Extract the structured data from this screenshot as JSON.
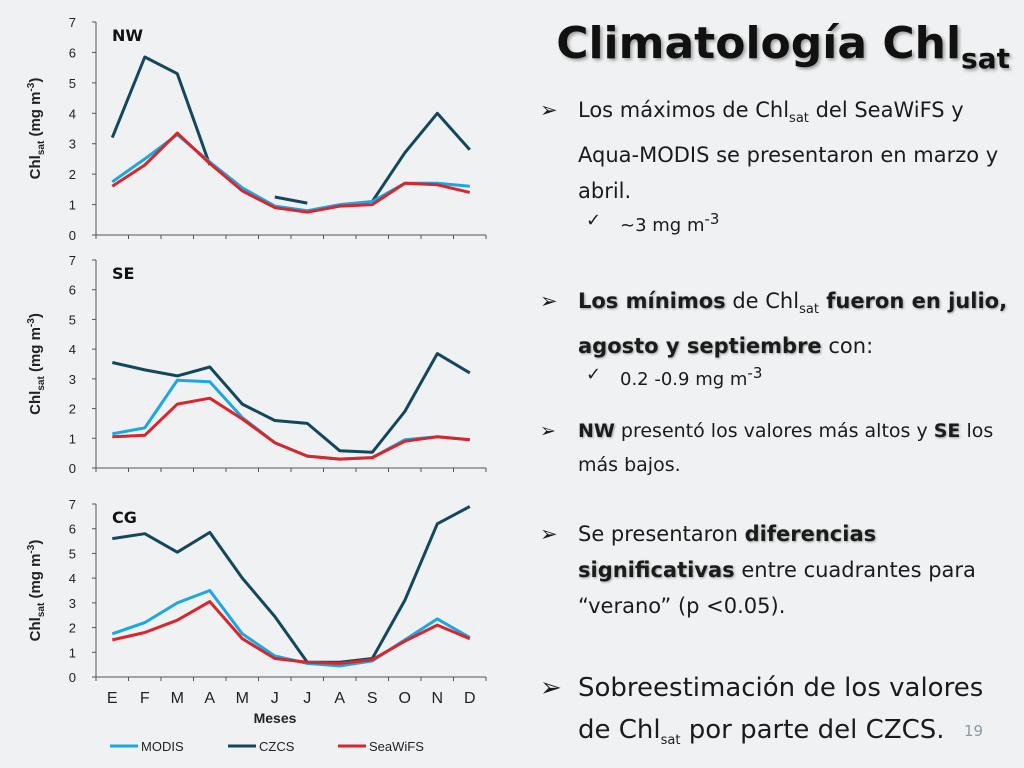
{
  "slide": {
    "title_main": "Climatología Chl",
    "title_sub": "sat",
    "page_number": "19"
  },
  "colors": {
    "modis": "#1ba7e0",
    "czcs": "#12475c",
    "seawifs": "#d8262c"
  },
  "bullets": {
    "b1": {
      "p1": "Los máximos de Chl",
      "sub": "sat",
      "p2": " del SeaWiFS y Aqua-MODIS se presentaron en marzo y abril."
    },
    "b1_check": {
      "p1": "~3 mg m",
      "sup": "-3"
    },
    "b2": {
      "bold1": "Los mínimos",
      "p1": " de Chl",
      "sub": "sat",
      "bold2": " fueron en julio, agosto y septiembre",
      "p2": " con:"
    },
    "b2_check": {
      "p1": "0.2 -0.9 mg m",
      "sup": "-3"
    },
    "b3": {
      "bold1": "NW",
      "p1": " presentó los valores más altos y ",
      "bold2": "SE",
      "p2": " los más bajos."
    },
    "b4": {
      "p1": "Se presentaron ",
      "bold1": "diferencias significativas",
      "p2": " entre cuadrantes para “verano” (p <0.05)."
    },
    "b5": {
      "p1": "Sobreestimación de los valores de Chl",
      "sub": "sat",
      "p2": " por parte del CZCS."
    }
  },
  "chart_data": [
    {
      "type": "line",
      "panel_label": "NW",
      "ylabel_main": "Chl",
      "ylabel_sub": "sat",
      "ylabel_rest": " (mg m",
      "ylabel_sup": "-3",
      "ylabel_end": ")",
      "ylim": [
        0,
        7
      ],
      "yticks": [
        "0",
        "1",
        "2",
        "3",
        "4",
        "5",
        "6",
        "7"
      ],
      "categories": [
        "E",
        "F",
        "M",
        "A",
        "M",
        "J",
        "J",
        "A",
        "S",
        "O",
        "N",
        "D"
      ],
      "series": [
        {
          "name": "MODIS",
          "values": [
            1.75,
            2.5,
            3.3,
            2.4,
            1.55,
            0.95,
            0.8,
            1.0,
            1.1,
            1.7,
            1.7,
            1.6
          ]
        },
        {
          "name": "CZCS",
          "values": [
            3.2,
            5.85,
            5.3,
            2.3,
            null,
            1.25,
            1.05,
            null,
            1.1,
            2.7,
            4.0,
            2.8
          ]
        },
        {
          "name": "SeaWiFS",
          "values": [
            1.6,
            2.3,
            3.35,
            2.35,
            1.45,
            0.9,
            0.75,
            0.95,
            1.0,
            1.7,
            1.65,
            1.4
          ]
        }
      ]
    },
    {
      "type": "line",
      "panel_label": "SE",
      "ylabel_main": "Chl",
      "ylabel_sub": "sat",
      "ylabel_rest": " (mg m",
      "ylabel_sup": "-3",
      "ylabel_end": ")",
      "ylim": [
        0,
        7
      ],
      "yticks": [
        "0",
        "1",
        "2",
        "3",
        "4",
        "5",
        "6",
        "7"
      ],
      "categories": [
        "E",
        "F",
        "M",
        "A",
        "M",
        "J",
        "J",
        "A",
        "S",
        "O",
        "N",
        "D"
      ],
      "series": [
        {
          "name": "MODIS",
          "values": [
            1.15,
            1.35,
            2.95,
            2.9,
            1.7,
            0.85,
            0.4,
            0.3,
            0.35,
            0.95,
            1.05,
            0.95
          ]
        },
        {
          "name": "CZCS",
          "values": [
            3.55,
            3.3,
            3.1,
            3.4,
            2.15,
            1.6,
            1.5,
            0.58,
            0.53,
            1.9,
            3.85,
            3.2
          ]
        },
        {
          "name": "SeaWiFS",
          "values": [
            1.05,
            1.1,
            2.15,
            2.35,
            1.65,
            0.85,
            0.4,
            0.3,
            0.35,
            0.9,
            1.05,
            0.95
          ]
        }
      ]
    },
    {
      "type": "line",
      "panel_label": "CG",
      "ylabel_main": "Chl",
      "ylabel_sub": "sat",
      "ylabel_rest": " (mg m",
      "ylabel_sup": "-3",
      "ylabel_end": ")",
      "ylim": [
        0,
        7
      ],
      "yticks": [
        "0",
        "1",
        "2",
        "3",
        "4",
        "5",
        "6",
        "7"
      ],
      "categories": [
        "E",
        "F",
        "M",
        "A",
        "M",
        "J",
        "J",
        "A",
        "S",
        "O",
        "N",
        "D"
      ],
      "xlabel": "Meses",
      "series": [
        {
          "name": "MODIS",
          "values": [
            1.75,
            2.2,
            3.0,
            3.5,
            1.75,
            0.85,
            0.55,
            0.45,
            0.65,
            1.5,
            2.35,
            1.6
          ]
        },
        {
          "name": "CZCS",
          "values": [
            5.6,
            5.8,
            5.05,
            5.85,
            4.0,
            2.45,
            0.6,
            0.6,
            0.75,
            3.1,
            6.2,
            6.9
          ]
        },
        {
          "name": "SeaWiFS",
          "values": [
            1.5,
            1.8,
            2.3,
            3.05,
            1.55,
            0.75,
            0.6,
            0.55,
            0.7,
            1.45,
            2.1,
            1.55
          ]
        }
      ],
      "legend": [
        "MODIS",
        "CZCS",
        "SeaWiFS"
      ]
    }
  ]
}
